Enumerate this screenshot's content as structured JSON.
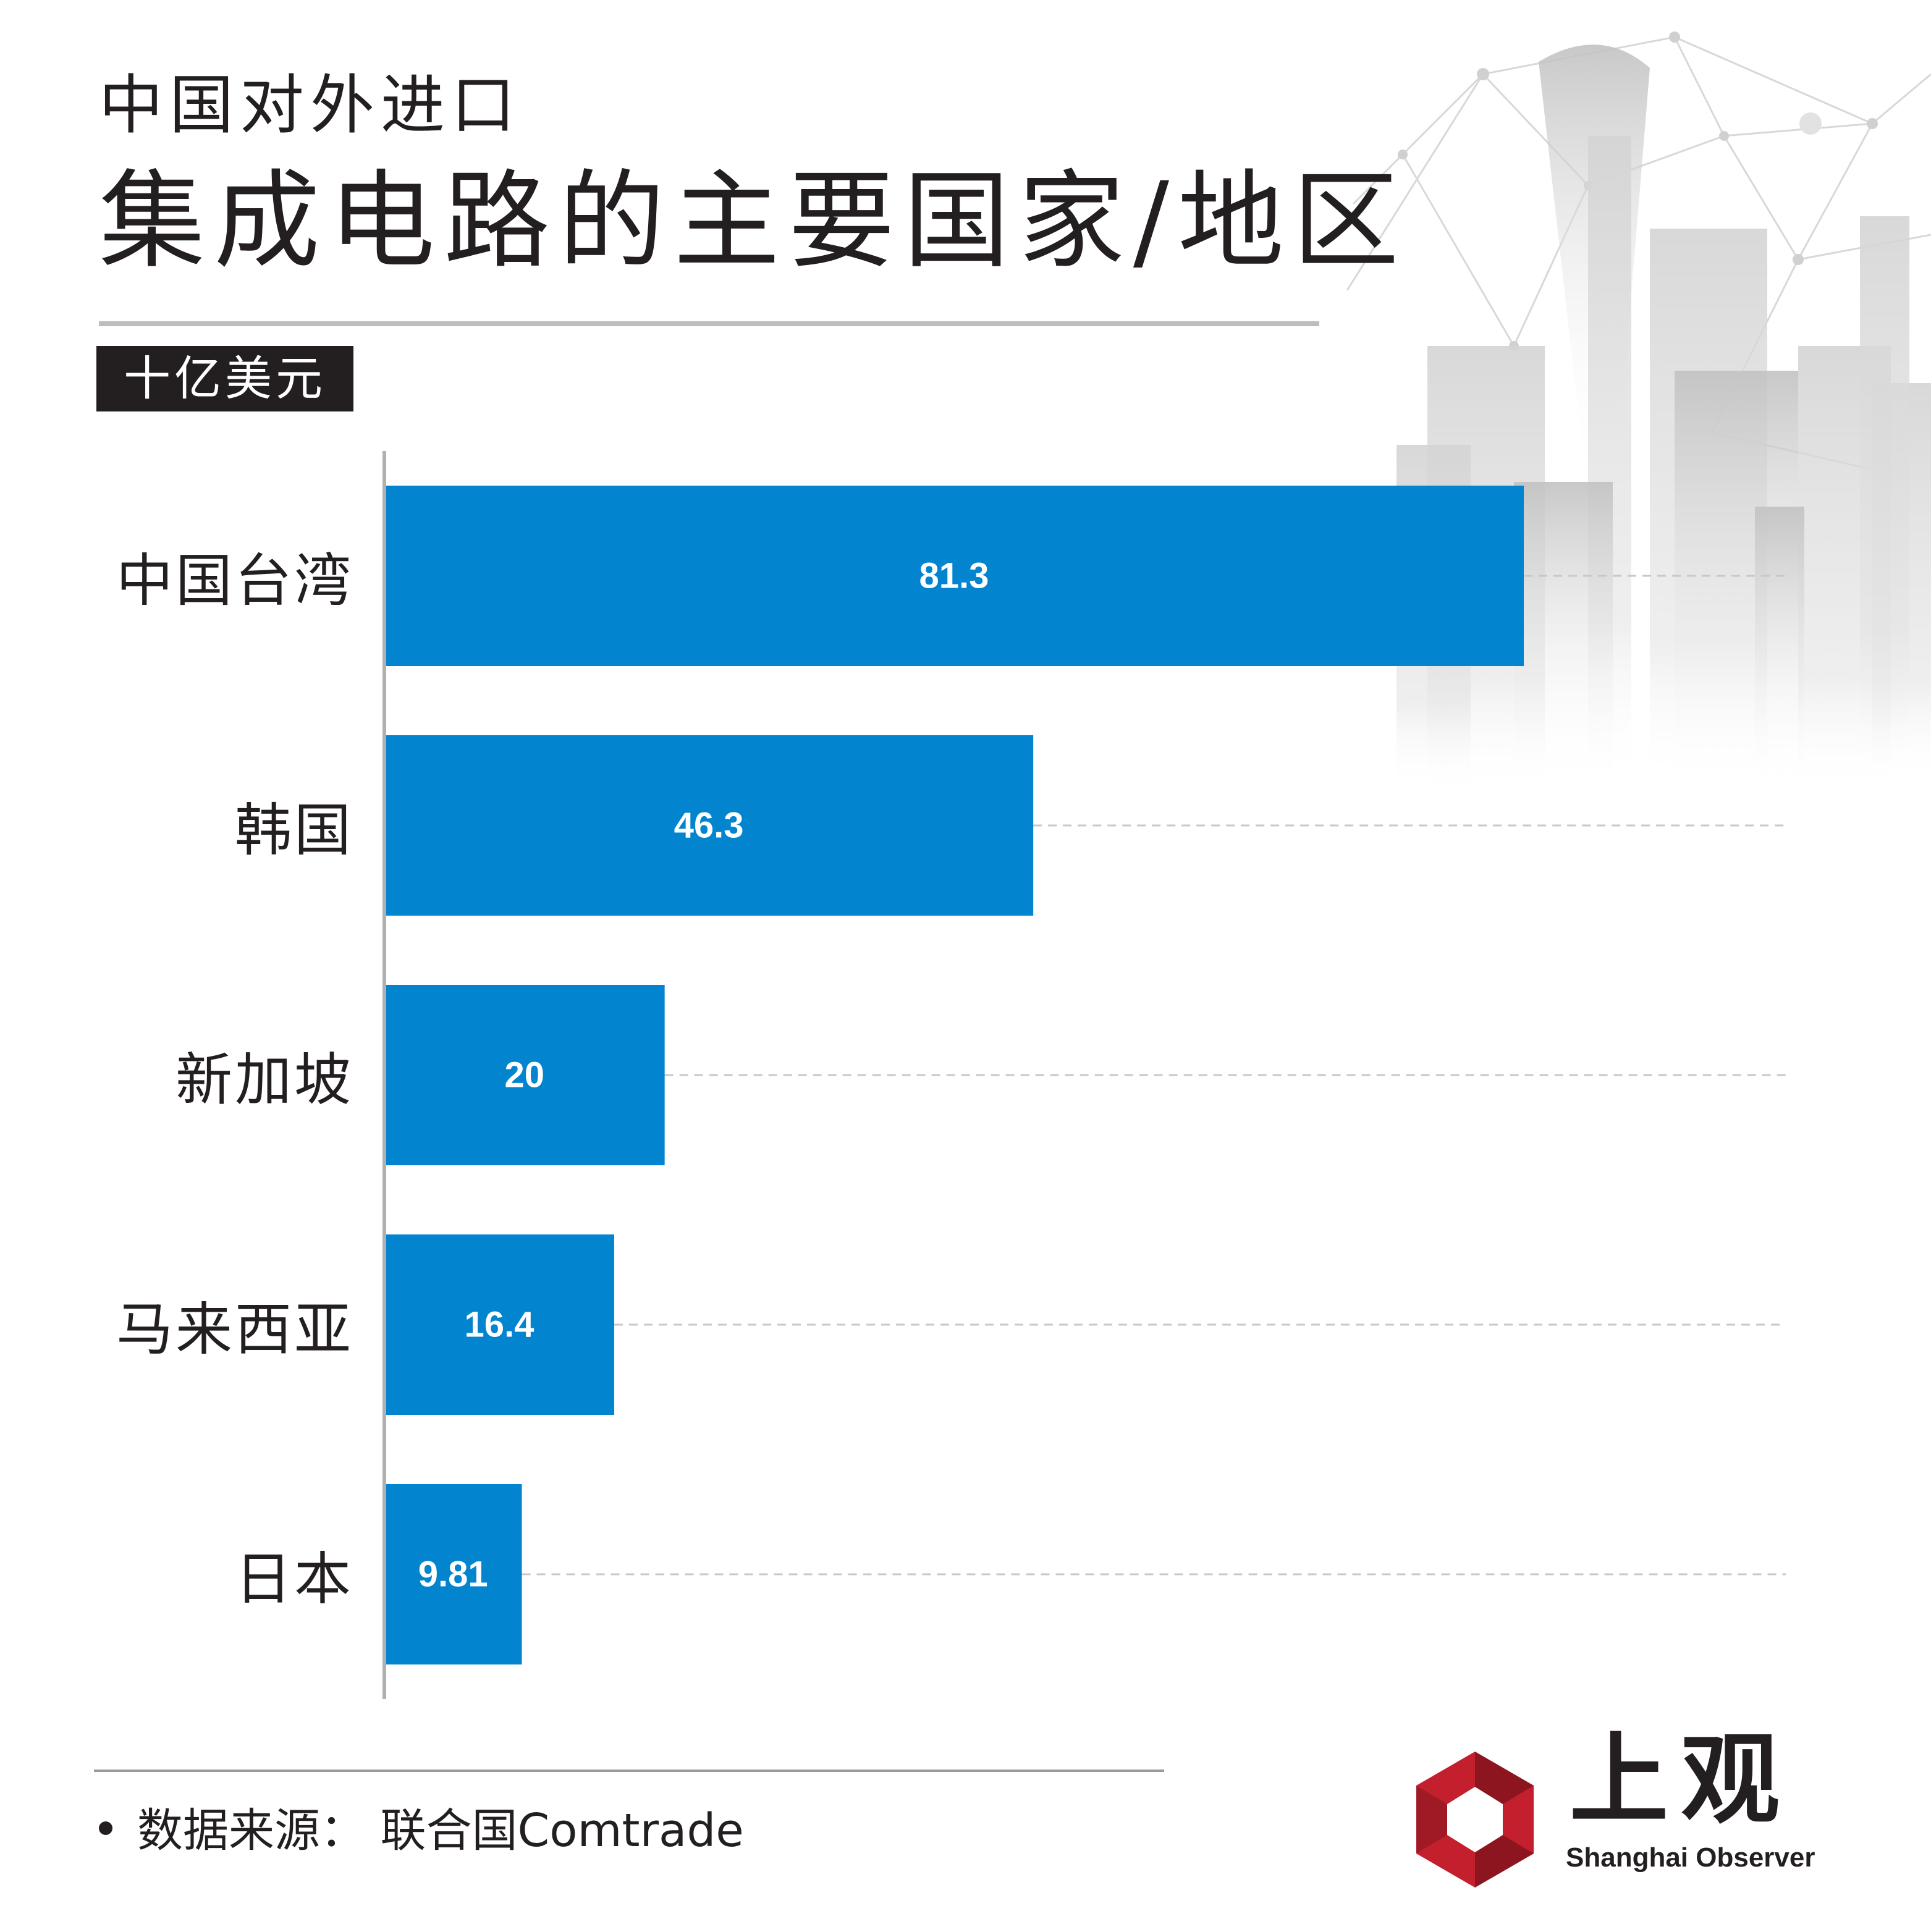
{
  "header": {
    "subtitle": "中国对外进口",
    "title": "集成电路的主要国家/地区",
    "unit": "十亿美元"
  },
  "chart_data": {
    "type": "bar",
    "orientation": "horizontal",
    "categories": [
      "中国台湾",
      "韩国",
      "新加坡",
      "马来西亚",
      "日本"
    ],
    "values": [
      81.3,
      46.3,
      20,
      16.4,
      9.81
    ],
    "value_labels": [
      "81.3",
      "46.3",
      "20",
      "16.4",
      "9.81"
    ],
    "title": "集成电路的主要国家/地区",
    "ylabel": "十亿美元",
    "xlim": [
      0,
      100
    ],
    "grid": "dashed horizontal guide per bar",
    "legend": "none",
    "bar_color": "#0284cf"
  },
  "footer": {
    "source": "数据来源： 联合国Comtrade"
  },
  "logo": {
    "name_cn": "上观",
    "name_en": "Shanghai Observer",
    "colors": [
      "#c41f2d",
      "#8d1520"
    ]
  },
  "colors": {
    "text": "#231f20",
    "bar": "#0284cf",
    "bar_label": "#ffffff",
    "axis": "#b0b0b0",
    "gridline": "#c8c8c8"
  }
}
